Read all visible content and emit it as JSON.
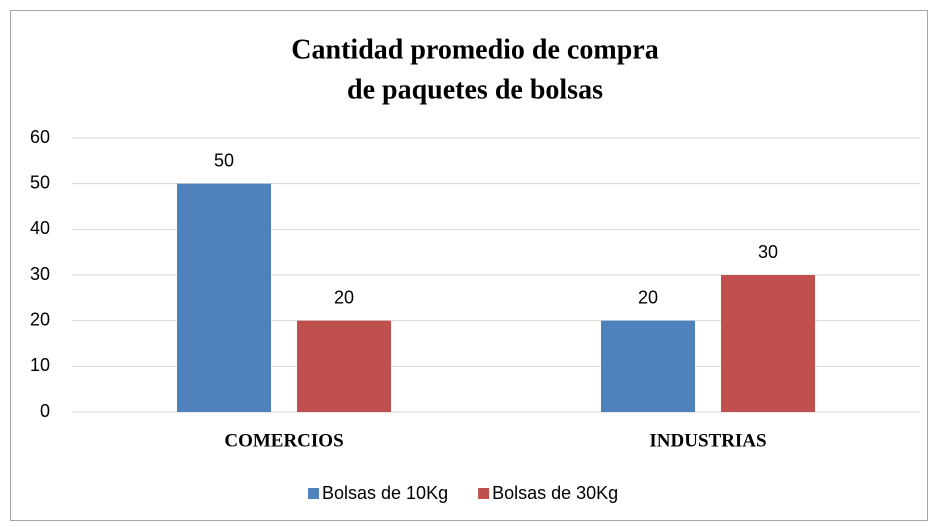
{
  "chart_data": {
    "type": "bar",
    "title": [
      "Cantidad promedio de compra",
      "de paquetes de bolsas"
    ],
    "categories": [
      "COMERCIOS",
      "INDUSTRIAS"
    ],
    "series": [
      {
        "name": "Bolsas de 10Kg",
        "color": "#4f81bd",
        "values": [
          50,
          20
        ]
      },
      {
        "name": "Bolsas de 30Kg",
        "color": "#c0504d",
        "values": [
          20,
          30
        ]
      }
    ],
    "ylim": [
      0,
      60
    ],
    "yticks": [
      0,
      10,
      20,
      30,
      40,
      50,
      60
    ],
    "grid": true,
    "legend": "bottom"
  }
}
